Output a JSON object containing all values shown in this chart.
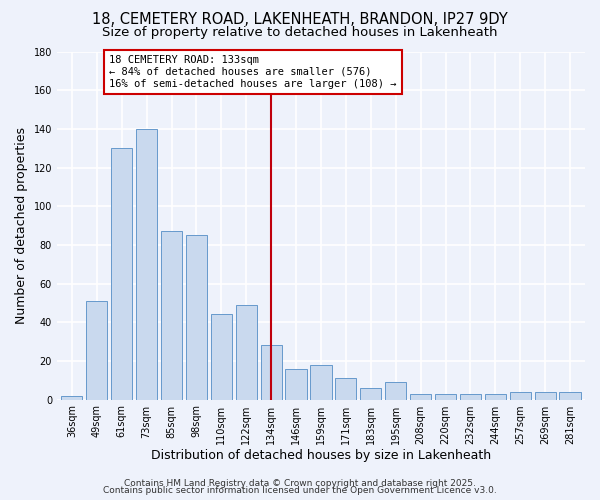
{
  "title": "18, CEMETERY ROAD, LAKENHEATH, BRANDON, IP27 9DY",
  "subtitle": "Size of property relative to detached houses in Lakenheath",
  "xlabel": "Distribution of detached houses by size in Lakenheath",
  "ylabel": "Number of detached properties",
  "categories": [
    "36sqm",
    "49sqm",
    "61sqm",
    "73sqm",
    "85sqm",
    "98sqm",
    "110sqm",
    "122sqm",
    "134sqm",
    "146sqm",
    "159sqm",
    "171sqm",
    "183sqm",
    "195sqm",
    "208sqm",
    "220sqm",
    "232sqm",
    "244sqm",
    "257sqm",
    "269sqm",
    "281sqm"
  ],
  "values": [
    2,
    51,
    130,
    140,
    87,
    85,
    44,
    49,
    28,
    16,
    18,
    11,
    6,
    9,
    3,
    3,
    3,
    3,
    4,
    4,
    4
  ],
  "bar_color": "#c9d9ee",
  "bar_edge_color": "#6699cc",
  "marker_index": 8,
  "marker_color": "#c0000c",
  "annotation_title": "18 CEMETERY ROAD: 133sqm",
  "annotation_line1": "← 84% of detached houses are smaller (576)",
  "annotation_line2": "16% of semi-detached houses are larger (108) →",
  "annotation_box_edge": "#cc0000",
  "ylim": [
    0,
    180
  ],
  "yticks": [
    0,
    20,
    40,
    60,
    80,
    100,
    120,
    140,
    160,
    180
  ],
  "footer1": "Contains HM Land Registry data © Crown copyright and database right 2025.",
  "footer2": "Contains public sector information licensed under the Open Government Licence v3.0.",
  "background_color": "#eef2fb",
  "grid_color": "#ffffff",
  "title_fontsize": 10.5,
  "subtitle_fontsize": 9.5,
  "axis_label_fontsize": 9,
  "tick_fontsize": 7,
  "footer_fontsize": 6.5,
  "annotation_fontsize": 7.5
}
